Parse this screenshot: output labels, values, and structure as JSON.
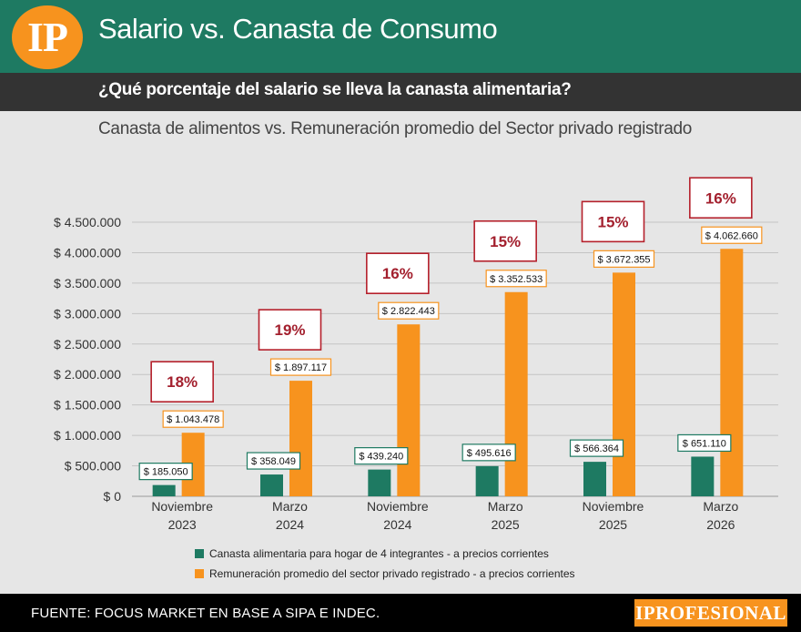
{
  "header": {
    "logo_text": "IP",
    "title": "Salario vs. Canasta de Consumo",
    "subtitle": "¿Qué porcentaje del salario se lleva la canasta alimentaria?"
  },
  "footer": {
    "source": "FUENTE: FOCUS MARKET EN BASE A SIPA E INDEC.",
    "brand": "IPROFESIONAL"
  },
  "colors": {
    "green": "#1e7a62",
    "orange": "#f7931e",
    "pct_border": "#b5202b",
    "pct_text": "#a3202e"
  },
  "chart_data": {
    "type": "bar",
    "title": "Canasta de alimentos vs. Remuneración promedio del Sector privado registrado",
    "xlabel": "",
    "ylabel": "",
    "ylim": [
      0,
      4500000
    ],
    "y_ticks": [
      0,
      500000,
      1000000,
      1500000,
      2000000,
      2500000,
      3000000,
      3500000,
      4000000,
      4500000
    ],
    "y_tick_labels": [
      "$ 0",
      "$ 500.000",
      "$ 1.000.000",
      "$ 1.500.000",
      "$ 2.000.000",
      "$ 2.500.000",
      "$ 3.000.000",
      "$ 3.500.000",
      "$ 4.000.000",
      "$ 4.500.000"
    ],
    "categories": [
      [
        "Noviembre",
        "2023"
      ],
      [
        "Marzo",
        "2024"
      ],
      [
        "Noviembre",
        "2024"
      ],
      [
        "Marzo",
        "2025"
      ],
      [
        "Noviembre",
        "2025"
      ],
      [
        "Marzo",
        "2026"
      ]
    ],
    "series": [
      {
        "name": "Canasta alimentaria para hogar de 4 integrantes - a precios corrientes",
        "color": "#1e7a62",
        "values": [
          185050,
          358049,
          439240,
          495616,
          566364,
          651110
        ],
        "labels": [
          "$ 185.050",
          "$ 358.049",
          "$ 439.240",
          "$ 495.616",
          "$ 566.364",
          "$ 651.110"
        ]
      },
      {
        "name": "Remuneración promedio del sector privado registrado - a precios corrientes",
        "color": "#f7931e",
        "values": [
          1043478,
          1897117,
          2822443,
          3352533,
          3672355,
          4062660
        ],
        "labels": [
          "$ 1.043.478",
          "$ 1.897.117",
          "$ 2.822.443",
          "$ 3.352.533",
          "$ 3.672.355",
          "$ 4.062.660"
        ]
      }
    ],
    "percentages": [
      "18%",
      "19%",
      "16%",
      "15%",
      "15%",
      "16%"
    ]
  }
}
